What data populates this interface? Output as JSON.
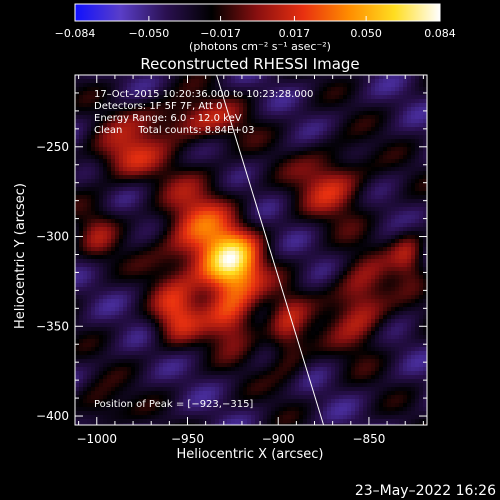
{
  "chart_data": {
    "type": "heatmap",
    "title": "Reconstructed RHESSI Image",
    "xlabel": "Heliocentric X (arcsec)",
    "ylabel": "Heliocentric Y (arcsec)",
    "xlim": [
      -1012,
      -818
    ],
    "ylim": [
      -405,
      -210
    ],
    "x_ticks": [
      {
        "value": -1000,
        "label": "−1000"
      },
      {
        "value": -950,
        "label": "−950"
      },
      {
        "value": -900,
        "label": "−900"
      },
      {
        "value": -850,
        "label": "−850"
      }
    ],
    "y_ticks": [
      {
        "value": -250,
        "label": "−250"
      },
      {
        "value": -300,
        "label": "−300"
      },
      {
        "value": -350,
        "label": "−350"
      },
      {
        "value": -400,
        "label": "−400"
      }
    ],
    "colorbar": {
      "range": [
        -0.084,
        0.084
      ],
      "ticks": [
        {
          "value": -0.084,
          "label": "−0.084"
        },
        {
          "value": -0.05,
          "label": "−0.050"
        },
        {
          "value": -0.017,
          "label": "−0.017"
        },
        {
          "value": 0.017,
          "label": "0.017"
        },
        {
          "value": 0.05,
          "label": "0.050"
        },
        {
          "value": 0.084,
          "label": "0.084"
        }
      ],
      "unit_label": "(photons cm⁻² s⁻¹ asec⁻²)",
      "colors": [
        "#1010ff",
        "#5a3ec8",
        "#2a1050",
        "#000000",
        "#8a1010",
        "#e83010",
        "#ff8c00",
        "#ffdd20",
        "#ffffff"
      ]
    },
    "info_lines": [
      "17–Oct–2015 10:20:36.000 to 10:23:28.000",
      "Detectors: 1F 5F 7F, Att 0",
      "Energy Range: 6.0 – 12.0 keV",
      "Clean     Total counts: 8.84E+03"
    ],
    "peak_text": "Position of Peak = [−923,−315]",
    "peak": {
      "x": -923,
      "y": -315,
      "value": 0.084
    },
    "limb_line": [
      {
        "x": -934,
        "y": -210
      },
      {
        "x": -875,
        "y": -405
      }
    ],
    "background_level": -0.035,
    "emission_components": [
      {
        "x": -925,
        "y": -316,
        "amplitude": 0.088,
        "sigma_x": 11,
        "sigma_y": 13
      },
      {
        "x": -945,
        "y": -300,
        "amplitude": 0.055,
        "sigma_x": 15,
        "sigma_y": 22
      },
      {
        "x": -925,
        "y": -345,
        "amplitude": 0.05,
        "sigma_x": 10,
        "sigma_y": 12
      },
      {
        "x": -957,
        "y": -345,
        "amplitude": 0.045,
        "sigma_x": 9,
        "sigma_y": 11
      },
      {
        "x": -895,
        "y": -355,
        "amplitude": 0.042,
        "sigma_x": 8,
        "sigma_y": 16
      },
      {
        "x": -985,
        "y": -255,
        "amplitude": 0.045,
        "sigma_x": 14,
        "sigma_y": 10
      },
      {
        "x": -950,
        "y": -235,
        "amplitude": 0.042,
        "sigma_x": 22,
        "sigma_y": 9
      },
      {
        "x": -870,
        "y": -270,
        "amplitude": 0.045,
        "sigma_x": 14,
        "sigma_y": 14
      },
      {
        "x": -855,
        "y": -338,
        "amplitude": 0.052,
        "sigma_x": 11,
        "sigma_y": 16
      },
      {
        "x": -828,
        "y": -310,
        "amplitude": 0.04,
        "sigma_x": 7,
        "sigma_y": 10
      },
      {
        "x": -1000,
        "y": -300,
        "amplitude": 0.025,
        "sigma_x": 8,
        "sigma_y": 12
      },
      {
        "x": -1000,
        "y": -395,
        "amplitude": 0.03,
        "sigma_x": 10,
        "sigma_y": 8
      }
    ],
    "date_stamp": "23–May–2022 16:26"
  }
}
